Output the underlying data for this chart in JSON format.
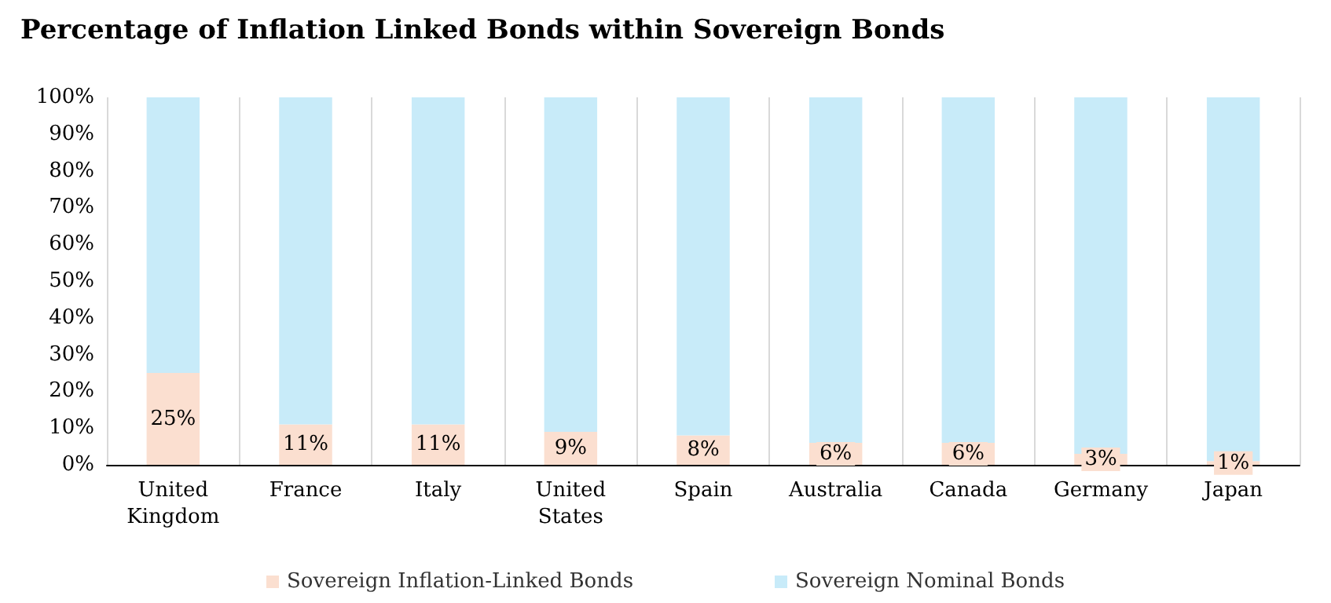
{
  "chart_data": {
    "type": "bar",
    "title": "Percentage of Inflation Linked Bonds within Sovereign Bonds",
    "categories": [
      "United\nKingdom",
      "France",
      "Italy",
      "United\nStates",
      "Spain",
      "Australia",
      "Canada",
      "Germany",
      "Japan"
    ],
    "stacked": true,
    "series": [
      {
        "name": "Sovereign Inflation-Linked Bonds",
        "color": "#fbdfd0",
        "values": [
          25,
          11,
          11,
          9,
          8,
          6,
          6,
          3,
          1
        ],
        "value_labels": [
          "25%",
          "11%",
          "11%",
          "9%",
          "8%",
          "6%",
          "6%",
          "3%",
          "1%"
        ]
      },
      {
        "name": "Sovereign Nominal Bonds",
        "color": "#c8ebf9",
        "values": [
          75,
          89,
          89,
          91,
          92,
          94,
          94,
          97,
          99
        ]
      }
    ],
    "ylim": [
      0,
      100
    ],
    "yticks": [
      {
        "value": 0,
        "label": "0%"
      },
      {
        "value": 10,
        "label": "10%"
      },
      {
        "value": 20,
        "label": "20%"
      },
      {
        "value": 30,
        "label": "30%"
      },
      {
        "value": 40,
        "label": "40%"
      },
      {
        "value": 50,
        "label": "50%"
      },
      {
        "value": 60,
        "label": "60%"
      },
      {
        "value": 70,
        "label": "70%"
      },
      {
        "value": 80,
        "label": "80%"
      },
      {
        "value": 90,
        "label": "90%"
      },
      {
        "value": 100,
        "label": "100%"
      }
    ],
    "grid": "x",
    "legend": "bottom"
  }
}
